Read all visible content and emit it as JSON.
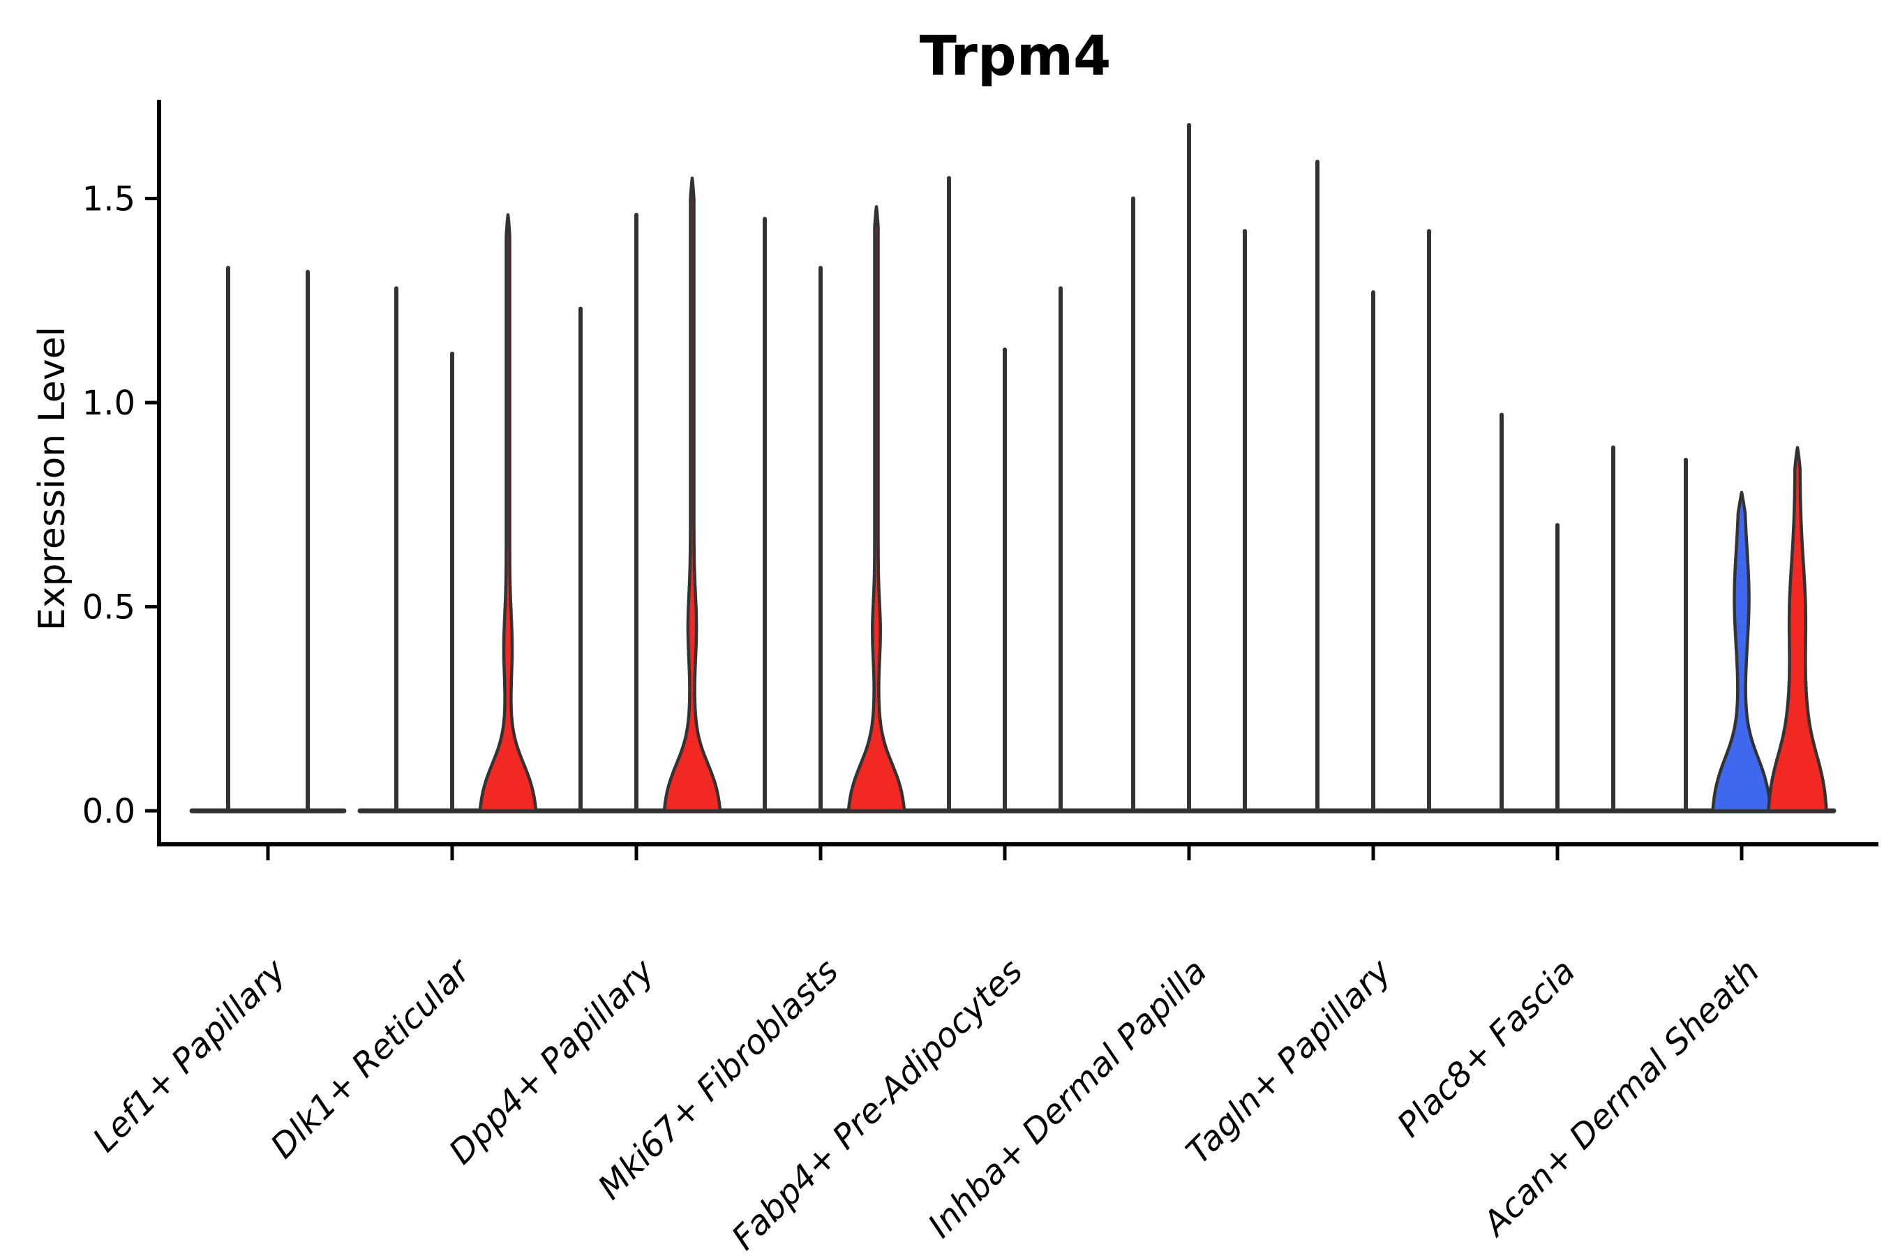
{
  "chart_data": {
    "type": "violin",
    "title": "Trpm4",
    "ylabel": "Expression Level",
    "xlabel": "",
    "grid": false,
    "legend": null,
    "ylim": [
      -0.08,
      1.75
    ],
    "yticks": [
      {
        "value": 0.0,
        "label": "0.0"
      },
      {
        "value": 0.5,
        "label": "0.5"
      },
      {
        "value": 1.0,
        "label": "1.0"
      },
      {
        "value": 1.5,
        "label": "1.5"
      }
    ],
    "categories": [
      "Lef1+ Papillary",
      "Dlk1+ Reticular",
      "Dpp4+ Papillary",
      "Mki67+ Fibroblasts",
      "Fabp4+ Pre-Adipocytes",
      "Inhba+ Dermal Papilla",
      "Tagln+ Papillary",
      "Plac8+ Fascia",
      "Acan+ Dermal Sheath"
    ],
    "colors": {
      "highlight_red": "#f22822",
      "highlight_blue": "#4068ee",
      "outline": "#333333",
      "axis": "#000000"
    },
    "groups": [
      {
        "label": "Lef1+ Papillary",
        "violins": [
          {
            "max": 1.33,
            "style": "line"
          },
          {
            "max": 1.32,
            "style": "line"
          }
        ]
      },
      {
        "label": "Dlk1+ Reticular",
        "violins": [
          {
            "max": 1.28,
            "style": "line"
          },
          {
            "max": 1.12,
            "style": "line"
          },
          {
            "max": 1.46,
            "style": "body",
            "fill": "highlight_red",
            "bulges": [
              {
                "amp": 3.5,
                "peak": 0.4,
                "sigma": 0.08
              }
            ],
            "base": {
              "halfw": 40,
              "center": 0.115,
              "k": 0.042
            },
            "stem": 2.5
          }
        ]
      },
      {
        "label": "Dpp4+ Papillary",
        "violins": [
          {
            "max": 1.23,
            "style": "line"
          },
          {
            "max": 1.46,
            "style": "line"
          },
          {
            "max": 1.55,
            "style": "body",
            "fill": "highlight_red",
            "bulges": [
              {
                "amp": 3.6,
                "peak": 0.45,
                "sigma": 0.08
              }
            ],
            "base": {
              "halfw": 40,
              "center": 0.115,
              "k": 0.042
            },
            "stem": 2.5
          }
        ]
      },
      {
        "label": "Mki67+ Fibroblasts",
        "violins": [
          {
            "max": 1.45,
            "style": "line"
          },
          {
            "max": 1.33,
            "style": "line"
          },
          {
            "max": 1.48,
            "style": "body",
            "fill": "highlight_red",
            "bulges": [
              {
                "amp": 3.2,
                "peak": 0.44,
                "sigma": 0.07
              }
            ],
            "base": {
              "halfw": 40,
              "center": 0.115,
              "k": 0.042
            },
            "stem": 2.5
          }
        ]
      },
      {
        "label": "Fabp4+ Pre-Adipocytes",
        "violins": [
          {
            "max": 1.55,
            "style": "line"
          },
          {
            "max": 1.13,
            "style": "line"
          },
          {
            "max": 1.28,
            "style": "line"
          }
        ]
      },
      {
        "label": "Inhba+ Dermal Papilla",
        "violins": [
          {
            "max": 1.5,
            "style": "line"
          },
          {
            "max": 1.68,
            "style": "line"
          },
          {
            "max": 1.42,
            "style": "line"
          }
        ]
      },
      {
        "label": "Tagln+ Papillary",
        "violins": [
          {
            "max": 1.59,
            "style": "line"
          },
          {
            "max": 1.27,
            "style": "line"
          },
          {
            "max": 1.42,
            "style": "line"
          }
        ]
      },
      {
        "label": "Plac8+ Fascia",
        "violins": [
          {
            "max": 0.97,
            "style": "line"
          },
          {
            "max": 0.7,
            "style": "line"
          },
          {
            "max": 0.89,
            "style": "line"
          }
        ]
      },
      {
        "label": "Acan+ Dermal Sheath",
        "violins": [
          {
            "max": 0.86,
            "style": "line"
          },
          {
            "max": 0.78,
            "style": "body",
            "fill": "highlight_blue",
            "bulges": [
              {
                "amp": 7.0,
                "peak": 0.52,
                "sigma": 0.12
              }
            ],
            "base": {
              "halfw": 40,
              "center": 0.13,
              "k": 0.045
            },
            "stem": 3.5
          },
          {
            "max": 0.89,
            "style": "body",
            "fill": "highlight_red",
            "bulges": [
              {
                "amp": 8.0,
                "peak": 0.48,
                "sigma": 0.13
              },
              {
                "amp": 6.0,
                "peak": 0.22,
                "sigma": 0.1
              }
            ],
            "base": {
              "halfw": 40,
              "center": 0.135,
              "k": 0.05
            },
            "stem": 3.5
          }
        ]
      }
    ]
  }
}
